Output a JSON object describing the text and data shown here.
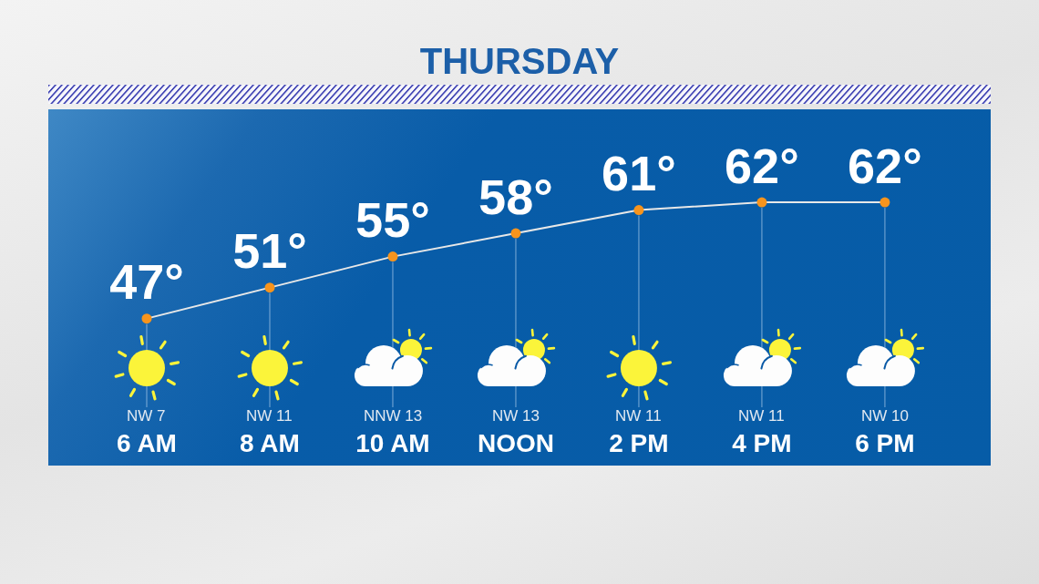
{
  "chart_data": {
    "type": "line",
    "title": "THURSDAY",
    "categories": [
      "6 AM",
      "8 AM",
      "10 AM",
      "NOON",
      "2 PM",
      "4 PM",
      "6 PM"
    ],
    "series": [
      {
        "color": "#e8e8e8",
        "colors": [
          "#f7941d",
          "#f7941d",
          "#f7941d",
          "#f7941d",
          "#f7941d",
          "#f7941d",
          "#f7941d"
        ],
        "values": [
          47,
          51,
          55,
          58,
          61,
          62,
          62
        ],
        "value_labels": [
          "47°",
          "51°",
          "55°",
          "58°",
          "61°",
          "62°",
          "62°"
        ]
      }
    ],
    "annotations": [
      "NW 7",
      "NW 11",
      "NNW 13",
      "NW 13",
      "NW 11",
      "NW 11",
      "NW 10"
    ],
    "marker": "circle",
    "line_style": "solid",
    "tick_labels": "x",
    "grid": "x"
  }
}
